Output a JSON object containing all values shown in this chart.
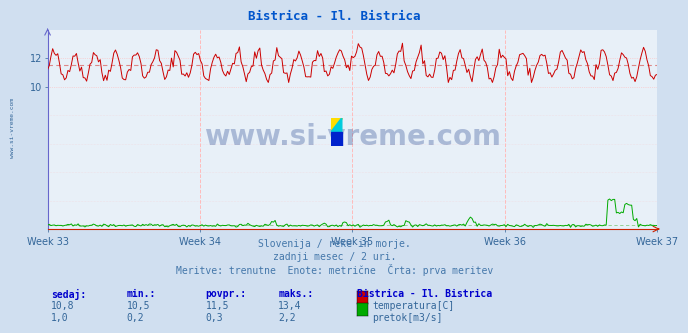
{
  "title": "Bistrica - Il. Bistrica",
  "title_color": "#0055cc",
  "bg_color": "#d0dff0",
  "plot_bg_color": "#e8f0f8",
  "x_weeks": [
    "Week 33",
    "Week 34",
    "Week 35",
    "Week 36",
    "Week 37"
  ],
  "x_week_positions": [
    0,
    84,
    168,
    252,
    336
  ],
  "n_points": 360,
  "temp_color": "#cc0000",
  "temp_avg": 11.5,
  "temp_avg_line_color": "#dd8888",
  "flow_color": "#00aa00",
  "flow_avg": 0.3,
  "flow_avg_line_color": "#88cc88",
  "ylim": [
    0,
    14.0
  ],
  "yticks": [
    10,
    12
  ],
  "xlim": [
    0,
    336
  ],
  "subtitle1": "Slovenija / reke in morje.",
  "subtitle2": "zadnji mesec / 2 uri.",
  "subtitle3": "Meritve: trenutne  Enote: metrične  Črta: prva meritev",
  "subtitle_color": "#4477aa",
  "watermark": "www.si-vreme.com",
  "watermark_color": "#1a3a8a",
  "grid_color": "#ffbbbb",
  "grid_h_color": "#ffbbbb",
  "left_spine_color": "#6666cc",
  "bottom_spine_color": "#cc2200",
  "side_label": "www.si-vreme.com",
  "side_label_color": "#336699",
  "label_color": "#0000cc",
  "stat_color": "#336699",
  "legend_title": "Bistrica - Il. Bistrica",
  "legend_label1": "temperatura[C]",
  "legend_label2": "pretok[m3/s]",
  "tick_color": "#336699",
  "logo_yellow": "#ffdd00",
  "logo_cyan": "#00ccdd",
  "logo_blue": "#0022cc"
}
